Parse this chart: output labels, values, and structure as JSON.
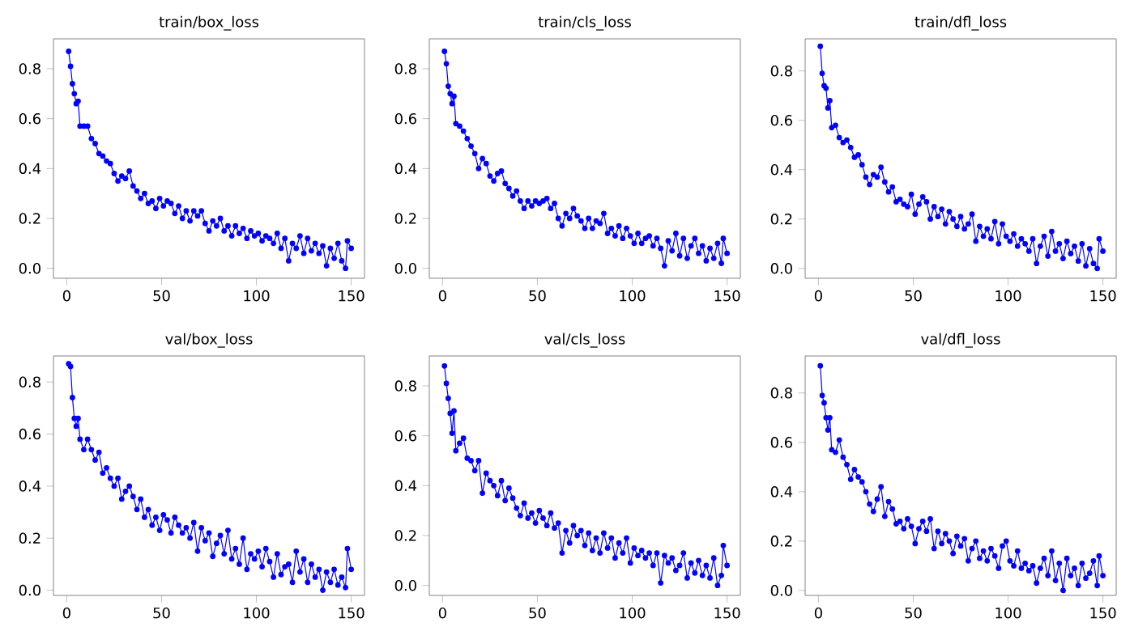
{
  "chart_data": [
    {
      "type": "line",
      "title": "train/box_loss",
      "color": "#0000ff",
      "marker": "circle",
      "xlim": [
        -7,
        157
      ],
      "ylim": [
        -0.04,
        0.92
      ],
      "xticks": [
        0,
        50,
        100,
        150
      ],
      "yticks": [
        {
          "value": 0,
          "label": "0.0"
        },
        {
          "value": 0.2,
          "label": "0.2"
        },
        {
          "value": 0.4,
          "label": "0.4"
        },
        {
          "value": 0.6,
          "label": "0.6"
        },
        {
          "value": 0.8,
          "label": "0.8"
        }
      ],
      "x": [
        1,
        2,
        3,
        4,
        5,
        6,
        7,
        9,
        11,
        13,
        15,
        17,
        19,
        21,
        23,
        25,
        27,
        29,
        31,
        33,
        35,
        37,
        39,
        41,
        43,
        45,
        47,
        49,
        51,
        53,
        55,
        57,
        59,
        61,
        63,
        65,
        67,
        69,
        71,
        73,
        75,
        77,
        79,
        81,
        83,
        85,
        87,
        89,
        91,
        93,
        95,
        97,
        99,
        101,
        103,
        105,
        107,
        109,
        111,
        113,
        115,
        117,
        119,
        121,
        123,
        125,
        127,
        129,
        131,
        133,
        135,
        137,
        139,
        141,
        143,
        145,
        147,
        148,
        150
      ],
      "values": [
        0.87,
        0.81,
        0.74,
        0.7,
        0.66,
        0.67,
        0.57,
        0.57,
        0.57,
        0.52,
        0.5,
        0.46,
        0.45,
        0.43,
        0.42,
        0.38,
        0.35,
        0.37,
        0.36,
        0.39,
        0.33,
        0.31,
        0.28,
        0.3,
        0.26,
        0.27,
        0.24,
        0.28,
        0.25,
        0.27,
        0.26,
        0.22,
        0.25,
        0.2,
        0.23,
        0.19,
        0.23,
        0.21,
        0.23,
        0.18,
        0.15,
        0.19,
        0.17,
        0.2,
        0.15,
        0.17,
        0.13,
        0.17,
        0.14,
        0.16,
        0.12,
        0.15,
        0.13,
        0.14,
        0.11,
        0.13,
        0.12,
        0.1,
        0.14,
        0.08,
        0.12,
        0.03,
        0.1,
        0.08,
        0.13,
        0.06,
        0.12,
        0.07,
        0.1,
        0.06,
        0.09,
        0.01,
        0.08,
        0.04,
        0.1,
        0.03,
        0.0,
        0.11,
        0.08
      ]
    },
    {
      "type": "line",
      "title": "train/cls_loss",
      "color": "#0000ff",
      "marker": "circle",
      "xlim": [
        -7,
        157
      ],
      "ylim": [
        -0.04,
        0.92
      ],
      "xticks": [
        0,
        50,
        100,
        150
      ],
      "yticks": [
        {
          "value": 0,
          "label": "0.0"
        },
        {
          "value": 0.2,
          "label": "0.2"
        },
        {
          "value": 0.4,
          "label": "0.4"
        },
        {
          "value": 0.6,
          "label": "0.6"
        },
        {
          "value": 0.8,
          "label": "0.8"
        }
      ],
      "x": [
        1,
        2,
        3,
        4,
        5,
        6,
        7,
        9,
        11,
        13,
        15,
        17,
        19,
        21,
        23,
        25,
        27,
        29,
        31,
        33,
        35,
        37,
        39,
        41,
        43,
        45,
        47,
        49,
        51,
        53,
        55,
        57,
        59,
        61,
        63,
        65,
        67,
        69,
        71,
        73,
        75,
        77,
        79,
        81,
        83,
        85,
        87,
        89,
        91,
        93,
        95,
        97,
        99,
        101,
        103,
        105,
        107,
        109,
        111,
        113,
        115,
        117,
        119,
        121,
        123,
        125,
        127,
        129,
        131,
        133,
        135,
        137,
        139,
        141,
        143,
        145,
        147,
        148,
        150
      ],
      "values": [
        0.87,
        0.82,
        0.73,
        0.7,
        0.66,
        0.69,
        0.58,
        0.57,
        0.55,
        0.52,
        0.49,
        0.46,
        0.4,
        0.44,
        0.42,
        0.37,
        0.35,
        0.38,
        0.39,
        0.34,
        0.32,
        0.29,
        0.31,
        0.27,
        0.24,
        0.27,
        0.25,
        0.27,
        0.26,
        0.27,
        0.28,
        0.24,
        0.26,
        0.2,
        0.17,
        0.22,
        0.2,
        0.24,
        0.21,
        0.19,
        0.16,
        0.2,
        0.16,
        0.19,
        0.18,
        0.22,
        0.14,
        0.16,
        0.13,
        0.17,
        0.12,
        0.16,
        0.13,
        0.1,
        0.14,
        0.1,
        0.12,
        0.13,
        0.09,
        0.12,
        0.08,
        0.01,
        0.11,
        0.07,
        0.14,
        0.05,
        0.12,
        0.04,
        0.09,
        0.12,
        0.06,
        0.09,
        0.03,
        0.08,
        0.04,
        0.1,
        0.02,
        0.12,
        0.06
      ]
    },
    {
      "type": "line",
      "title": "train/dfl_loss",
      "color": "#0000ff",
      "marker": "circle",
      "xlim": [
        -7,
        157
      ],
      "ylim": [
        -0.04,
        0.93
      ],
      "xticks": [
        0,
        50,
        100,
        150
      ],
      "yticks": [
        {
          "value": 0,
          "label": "0.0"
        },
        {
          "value": 0.2,
          "label": "0.2"
        },
        {
          "value": 0.4,
          "label": "0.4"
        },
        {
          "value": 0.6,
          "label": "0.6"
        },
        {
          "value": 0.8,
          "label": "0.8"
        }
      ],
      "x": [
        1,
        2,
        3,
        4,
        5,
        6,
        7,
        9,
        11,
        13,
        15,
        17,
        19,
        21,
        23,
        25,
        27,
        29,
        31,
        33,
        35,
        37,
        39,
        41,
        43,
        45,
        47,
        49,
        51,
        53,
        55,
        57,
        59,
        61,
        63,
        65,
        67,
        69,
        71,
        73,
        75,
        77,
        79,
        81,
        83,
        85,
        87,
        89,
        91,
        93,
        95,
        97,
        99,
        101,
        103,
        105,
        107,
        109,
        111,
        113,
        115,
        117,
        119,
        121,
        123,
        125,
        127,
        129,
        131,
        133,
        135,
        137,
        139,
        141,
        143,
        145,
        147,
        148,
        150
      ],
      "values": [
        0.9,
        0.79,
        0.74,
        0.73,
        0.65,
        0.68,
        0.57,
        0.58,
        0.53,
        0.51,
        0.52,
        0.49,
        0.45,
        0.46,
        0.42,
        0.37,
        0.34,
        0.38,
        0.37,
        0.41,
        0.35,
        0.31,
        0.33,
        0.27,
        0.28,
        0.26,
        0.25,
        0.3,
        0.22,
        0.26,
        0.29,
        0.27,
        0.2,
        0.25,
        0.21,
        0.24,
        0.18,
        0.23,
        0.2,
        0.17,
        0.21,
        0.16,
        0.18,
        0.22,
        0.11,
        0.17,
        0.13,
        0.16,
        0.12,
        0.19,
        0.1,
        0.18,
        0.13,
        0.11,
        0.14,
        0.09,
        0.12,
        0.1,
        0.07,
        0.12,
        0.02,
        0.09,
        0.13,
        0.05,
        0.15,
        0.07,
        0.1,
        0.04,
        0.11,
        0.06,
        0.09,
        0.03,
        0.1,
        0.01,
        0.08,
        0.02,
        0.0,
        0.12,
        0.07
      ]
    },
    {
      "type": "line",
      "title": "val/box_loss",
      "color": "#0000ff",
      "marker": "circle",
      "xlim": [
        -7,
        157
      ],
      "ylim": [
        -0.02,
        0.9
      ],
      "xticks": [
        0,
        50,
        100,
        150
      ],
      "yticks": [
        {
          "value": 0,
          "label": "0.0"
        },
        {
          "value": 0.2,
          "label": "0.2"
        },
        {
          "value": 0.4,
          "label": "0.4"
        },
        {
          "value": 0.6,
          "label": "0.6"
        },
        {
          "value": 0.8,
          "label": "0.8"
        }
      ],
      "x": [
        1,
        2,
        3,
        4,
        5,
        6,
        7,
        9,
        11,
        13,
        15,
        17,
        19,
        21,
        23,
        25,
        27,
        29,
        31,
        33,
        35,
        37,
        39,
        41,
        43,
        45,
        47,
        49,
        51,
        53,
        55,
        57,
        59,
        61,
        63,
        65,
        67,
        69,
        71,
        73,
        75,
        77,
        79,
        81,
        83,
        85,
        87,
        89,
        91,
        93,
        95,
        97,
        99,
        101,
        103,
        105,
        107,
        109,
        111,
        113,
        115,
        117,
        119,
        121,
        123,
        125,
        127,
        129,
        131,
        133,
        135,
        137,
        139,
        141,
        143,
        145,
        147,
        148,
        150
      ],
      "values": [
        0.87,
        0.86,
        0.74,
        0.66,
        0.63,
        0.66,
        0.58,
        0.54,
        0.58,
        0.54,
        0.5,
        0.53,
        0.45,
        0.47,
        0.43,
        0.4,
        0.43,
        0.35,
        0.38,
        0.4,
        0.36,
        0.31,
        0.35,
        0.28,
        0.31,
        0.25,
        0.28,
        0.23,
        0.29,
        0.27,
        0.22,
        0.28,
        0.25,
        0.22,
        0.24,
        0.2,
        0.26,
        0.15,
        0.24,
        0.19,
        0.22,
        0.13,
        0.18,
        0.21,
        0.14,
        0.23,
        0.12,
        0.16,
        0.1,
        0.2,
        0.08,
        0.14,
        0.12,
        0.15,
        0.09,
        0.16,
        0.11,
        0.05,
        0.14,
        0.06,
        0.09,
        0.1,
        0.03,
        0.15,
        0.07,
        0.12,
        0.03,
        0.1,
        0.05,
        0.08,
        0.0,
        0.07,
        0.03,
        0.08,
        0.02,
        0.05,
        0.01,
        0.16,
        0.08
      ]
    },
    {
      "type": "line",
      "title": "val/cls_loss",
      "color": "#0000ff",
      "marker": "circle",
      "xlim": [
        -7,
        157
      ],
      "ylim": [
        -0.04,
        0.92
      ],
      "xticks": [
        0,
        50,
        100,
        150
      ],
      "yticks": [
        {
          "value": 0,
          "label": "0.0"
        },
        {
          "value": 0.2,
          "label": "0.2"
        },
        {
          "value": 0.4,
          "label": "0.4"
        },
        {
          "value": 0.6,
          "label": "0.6"
        },
        {
          "value": 0.8,
          "label": "0.8"
        }
      ],
      "x": [
        1,
        2,
        3,
        4,
        5,
        6,
        7,
        9,
        11,
        13,
        15,
        17,
        19,
        21,
        23,
        25,
        27,
        29,
        31,
        33,
        35,
        37,
        39,
        41,
        43,
        45,
        47,
        49,
        51,
        53,
        55,
        57,
        59,
        61,
        63,
        65,
        67,
        69,
        71,
        73,
        75,
        77,
        79,
        81,
        83,
        85,
        87,
        89,
        91,
        93,
        95,
        97,
        99,
        101,
        103,
        105,
        107,
        109,
        111,
        113,
        115,
        117,
        119,
        121,
        123,
        125,
        127,
        129,
        131,
        133,
        135,
        137,
        139,
        141,
        143,
        145,
        147,
        148,
        150
      ],
      "values": [
        0.88,
        0.81,
        0.75,
        0.69,
        0.61,
        0.7,
        0.54,
        0.57,
        0.59,
        0.51,
        0.5,
        0.46,
        0.5,
        0.37,
        0.45,
        0.42,
        0.4,
        0.36,
        0.42,
        0.34,
        0.39,
        0.35,
        0.31,
        0.28,
        0.33,
        0.27,
        0.29,
        0.25,
        0.3,
        0.27,
        0.24,
        0.29,
        0.23,
        0.25,
        0.13,
        0.22,
        0.17,
        0.24,
        0.2,
        0.22,
        0.16,
        0.21,
        0.14,
        0.19,
        0.13,
        0.21,
        0.15,
        0.19,
        0.11,
        0.17,
        0.13,
        0.19,
        0.09,
        0.15,
        0.12,
        0.14,
        0.11,
        0.13,
        0.08,
        0.13,
        0.01,
        0.12,
        0.09,
        0.11,
        0.06,
        0.08,
        0.13,
        0.03,
        0.09,
        0.05,
        0.1,
        0.04,
        0.08,
        0.03,
        0.11,
        0.0,
        0.04,
        0.16,
        0.08
      ]
    },
    {
      "type": "line",
      "title": "val/dfl_loss",
      "color": "#0000ff",
      "marker": "circle",
      "xlim": [
        -7,
        157
      ],
      "ylim": [
        -0.02,
        0.95
      ],
      "xticks": [
        0,
        50,
        100,
        150
      ],
      "yticks": [
        {
          "value": 0,
          "label": "0.0"
        },
        {
          "value": 0.2,
          "label": "0.2"
        },
        {
          "value": 0.4,
          "label": "0.4"
        },
        {
          "value": 0.6,
          "label": "0.6"
        },
        {
          "value": 0.8,
          "label": "0.8"
        }
      ],
      "x": [
        1,
        2,
        3,
        4,
        5,
        6,
        7,
        9,
        11,
        13,
        15,
        17,
        19,
        21,
        23,
        25,
        27,
        29,
        31,
        33,
        35,
        37,
        39,
        41,
        43,
        45,
        47,
        49,
        51,
        53,
        55,
        57,
        59,
        61,
        63,
        65,
        67,
        69,
        71,
        73,
        75,
        77,
        79,
        81,
        83,
        85,
        87,
        89,
        91,
        93,
        95,
        97,
        99,
        101,
        103,
        105,
        107,
        109,
        111,
        113,
        115,
        117,
        119,
        121,
        123,
        125,
        127,
        129,
        131,
        133,
        135,
        137,
        139,
        141,
        143,
        145,
        147,
        148,
        150
      ],
      "values": [
        0.91,
        0.79,
        0.76,
        0.7,
        0.65,
        0.7,
        0.57,
        0.56,
        0.61,
        0.54,
        0.51,
        0.45,
        0.49,
        0.46,
        0.44,
        0.4,
        0.35,
        0.32,
        0.37,
        0.42,
        0.3,
        0.36,
        0.33,
        0.27,
        0.28,
        0.25,
        0.29,
        0.26,
        0.19,
        0.25,
        0.28,
        0.24,
        0.29,
        0.17,
        0.24,
        0.19,
        0.23,
        0.2,
        0.15,
        0.22,
        0.18,
        0.21,
        0.12,
        0.17,
        0.2,
        0.13,
        0.16,
        0.12,
        0.17,
        0.14,
        0.09,
        0.18,
        0.2,
        0.12,
        0.1,
        0.16,
        0.09,
        0.11,
        0.08,
        0.1,
        0.03,
        0.09,
        0.13,
        0.06,
        0.16,
        0.04,
        0.11,
        0.0,
        0.13,
        0.06,
        0.09,
        0.02,
        0.11,
        0.05,
        0.07,
        0.12,
        0.02,
        0.14,
        0.06
      ]
    }
  ]
}
